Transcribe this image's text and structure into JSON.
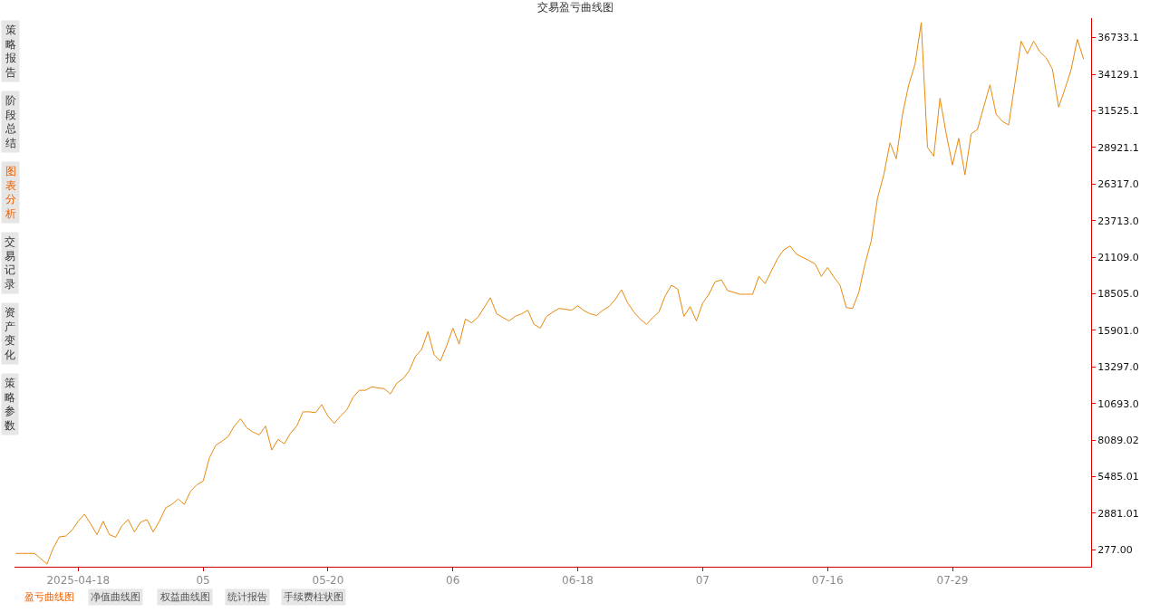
{
  "chart_data": {
    "type": "line",
    "title": "交易盈亏曲线图",
    "annotations": [
      "策略报告",
      "阶段总结",
      "图表分析",
      "交易记录",
      "资产变化",
      "策略参数",
      "盈亏曲线图",
      "净值曲线图",
      "权益曲线图",
      "统计报告",
      "手续费柱状图"
    ],
    "categories": [
      null,
      null,
      null,
      null,
      null,
      null,
      null,
      null,
      null,
      null,
      "2025-04-18",
      null,
      null,
      null,
      null,
      null,
      null,
      null,
      null,
      null,
      null,
      null,
      null,
      null,
      null,
      null,
      null,
      null,
      null,
      null,
      "05",
      null,
      null,
      null,
      null,
      null,
      null,
      null,
      null,
      null,
      null,
      null,
      null,
      null,
      null,
      null,
      null,
      null,
      null,
      null,
      "05-20",
      null,
      null,
      null,
      null,
      null,
      null,
      null,
      null,
      null,
      null,
      null,
      null,
      null,
      null,
      null,
      null,
      null,
      null,
      null,
      "06",
      null,
      null,
      null,
      null,
      null,
      null,
      null,
      null,
      null,
      null,
      null,
      null,
      null,
      null,
      null,
      null,
      null,
      null,
      null,
      "06-18",
      null,
      null,
      null,
      null,
      null,
      null,
      null,
      null,
      null,
      null,
      null,
      null,
      null,
      null,
      null,
      null,
      null,
      null,
      null,
      "07",
      null,
      null,
      null,
      null,
      null,
      null,
      null,
      null,
      null,
      null,
      null,
      null,
      null,
      null,
      null,
      null,
      null,
      null,
      null,
      "07-16",
      null,
      null,
      null,
      null,
      null,
      null,
      null,
      null,
      null,
      null,
      null,
      null,
      null,
      null,
      null,
      null,
      null,
      null,
      null,
      "07-29",
      null,
      null,
      null,
      null,
      null,
      null,
      null,
      null,
      null,
      null,
      null,
      null,
      null,
      null,
      null,
      null,
      null,
      null,
      null,
      null,
      null
    ],
    "ylim": [
      -928,
      38127
    ],
    "yticks": [
      {
        "value": 277,
        "label": "277.00"
      },
      2881.01,
      5485.01,
      8089.02,
      {
        "value": 10693,
        "label": "10693.0"
      },
      {
        "value": 13297,
        "label": "13297.0"
      },
      {
        "value": 15901,
        "label": "15901.0"
      },
      {
        "value": 18505,
        "label": "18505.0"
      },
      {
        "value": 21109,
        "label": "21109.0"
      },
      {
        "value": 23713,
        "label": "23713.0"
      },
      {
        "value": 26317,
        "label": "26317.0"
      },
      28921.1,
      31525.1,
      34129.1,
      36733.1
    ],
    "marker": "none",
    "line_style": "solid",
    "series": [
      {
        "color": "#e8890c",
        "values": [
          20,
          20,
          20,
          20,
          -350,
          -740,
          400,
          1200,
          1260,
          1670,
          2310,
          2810,
          2120,
          1360,
          2310,
          1360,
          1170,
          1990,
          2430,
          1550,
          2240,
          2430,
          1550,
          2310,
          3260,
          3510,
          3890,
          3510,
          4460,
          4910,
          5160,
          6810,
          7700,
          8000,
          8330,
          9090,
          9600,
          8960,
          8650,
          8460,
          9090,
          7380,
          8140,
          7820,
          8580,
          9090,
          10100,
          10100,
          10040,
          10610,
          9790,
          9280,
          9800,
          10230,
          11120,
          11630,
          11630,
          11880,
          11800,
          11750,
          11370,
          12130,
          12450,
          13020,
          14040,
          14540,
          15810,
          14160,
          13720,
          14800,
          16060,
          14920,
          16700,
          16440,
          16820,
          17520,
          18220,
          17080,
          16820,
          16570,
          16900,
          17080,
          17330,
          16320,
          16060,
          16890,
          17200,
          17460,
          17400,
          17330,
          17650,
          17300,
          17080,
          16950,
          17330,
          17590,
          18100,
          18790,
          17840,
          17200,
          16700,
          16320,
          16800,
          17210,
          18350,
          19110,
          18850,
          16890,
          17590,
          16570,
          17840,
          18470,
          19360,
          19490,
          18730,
          18600,
          18470,
          18470,
          18470,
          19740,
          19230,
          20120,
          21010,
          21640,
          21900,
          21330,
          21100,
          20880,
          20630,
          19740,
          20380,
          19700,
          19110,
          17520,
          17460,
          18600,
          20630,
          22280,
          25320,
          26970,
          29250,
          28110,
          31280,
          33370,
          34830,
          37810,
          28930,
          28300,
          32420,
          29890,
          27670,
          29570,
          26970,
          29890,
          30200,
          31790,
          33370,
          31280,
          30770,
          30520,
          33500,
          36480,
          35590,
          36480,
          35720,
          35300,
          34500,
          31790,
          33060,
          34450,
          36610,
          35210
        ]
      }
    ]
  }
}
